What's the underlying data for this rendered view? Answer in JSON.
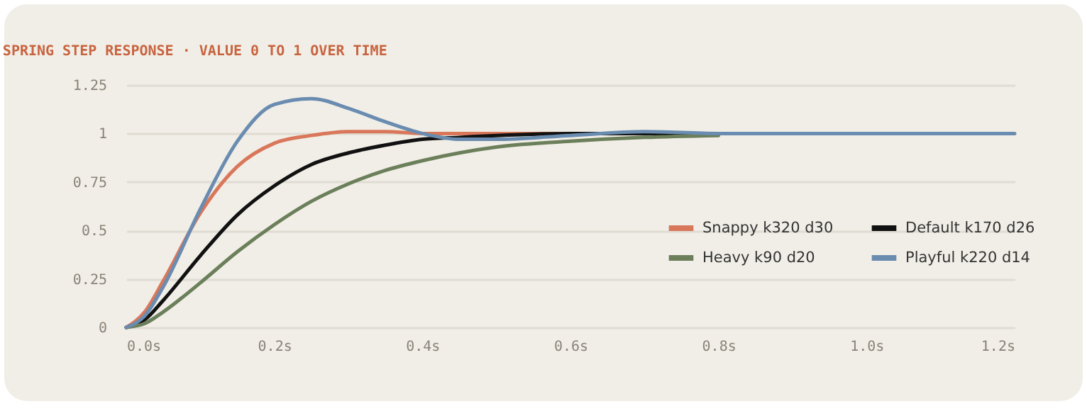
{
  "chart_data": {
    "type": "line",
    "title": "SPRING STEP RESPONSE · VALUE 0 TO 1 OVER TIME",
    "x": [
      0,
      0.025,
      0.05,
      0.1,
      0.15,
      0.2,
      0.25,
      0.3,
      0.35,
      0.4,
      0.45,
      0.5,
      0.6,
      0.7,
      0.8,
      1.0,
      1.2
    ],
    "series": [
      {
        "name": "Snappy k320 d30",
        "color": "#d9775a",
        "values": [
          0,
          0.08,
          0.24,
          0.59,
          0.83,
          0.95,
          0.99,
          1.01,
          1.01,
          1.0,
          1.0,
          1.0,
          1,
          1,
          null,
          null,
          null
        ]
      },
      {
        "name": "Default k170 d26",
        "color": "#111111",
        "values": [
          0,
          0.04,
          0.14,
          0.37,
          0.58,
          0.73,
          0.84,
          0.9,
          0.94,
          0.97,
          0.98,
          0.99,
          1.0,
          1,
          1,
          null,
          null
        ]
      },
      {
        "name": "Heavy k90 d20",
        "color": "#6b7f5a",
        "values": [
          0,
          0.02,
          0.08,
          0.23,
          0.39,
          0.53,
          0.65,
          0.74,
          0.81,
          0.86,
          0.9,
          0.93,
          0.96,
          0.98,
          0.99,
          null,
          null
        ]
      },
      {
        "name": "Playful k220 d14",
        "color": "#6a8cb0",
        "values": [
          0,
          0.06,
          0.21,
          0.61,
          0.96,
          1.15,
          1.18,
          1.13,
          1.06,
          1.0,
          0.97,
          0.97,
          0.99,
          1.01,
          1.0,
          1,
          1
        ]
      }
    ],
    "xlim": [
      0,
      1.2
    ],
    "xticks": [
      {
        "value": 0,
        "label": "0.0s"
      },
      {
        "value": 0.2,
        "label": "0.2s"
      },
      {
        "value": 0.4,
        "label": "0.4s"
      },
      {
        "value": 0.6,
        "label": "0.6s"
      },
      {
        "value": 0.8,
        "label": "0.8s"
      },
      {
        "value": 1.0,
        "label": "1.0s"
      },
      {
        "value": 1.2,
        "label": "1.2s"
      }
    ],
    "ylim": [
      0,
      1.25
    ],
    "yticks": [
      0,
      0.25,
      0.5,
      0.75,
      1,
      1.25
    ],
    "grid": "y",
    "legend": "right",
    "line_style": "solid"
  }
}
